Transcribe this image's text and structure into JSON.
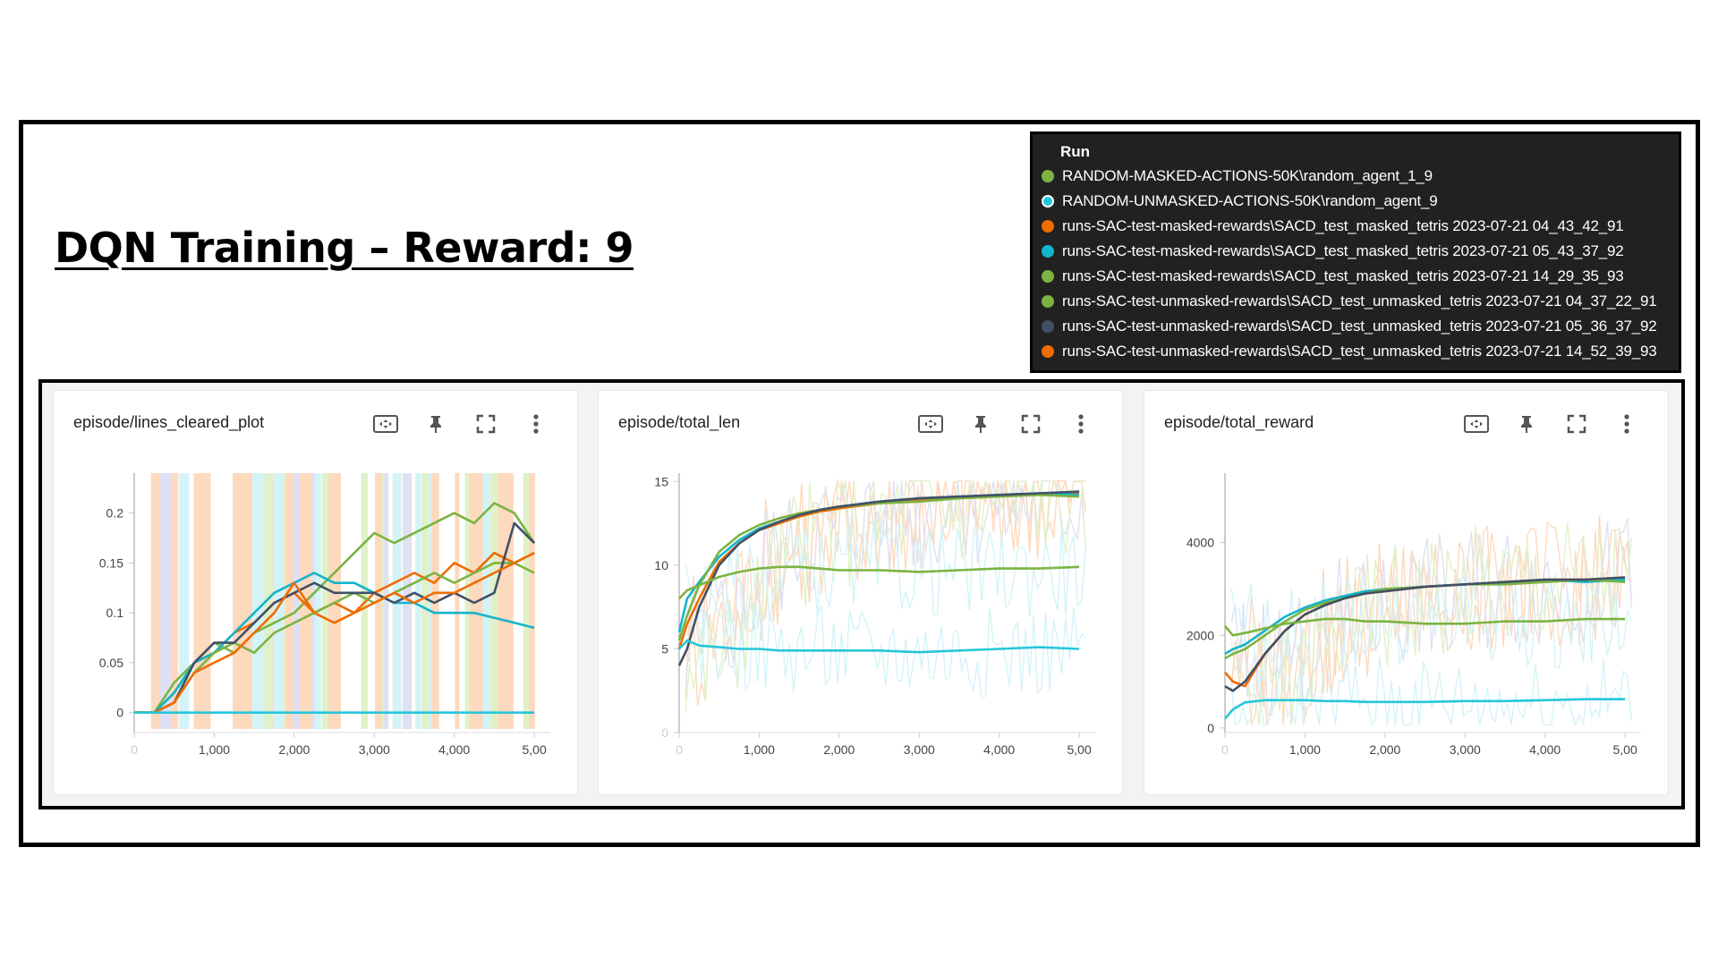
{
  "slide": {
    "title": "DQN Training – Reward: 9"
  },
  "legend": {
    "header": "Run",
    "items": [
      {
        "label": "RANDOM-MASKED-ACTIONS-50K\\random_agent_1_9",
        "color": "#7cb342"
      },
      {
        "label": "RANDOM-UNMASKED-ACTIONS-50K\\random_agent_9",
        "color": "#26c6da"
      },
      {
        "label": "runs-SAC-test-masked-rewards\\SACD_test_masked_tetris 2023-07-21 04_43_42_91",
        "color": "#ef6c00"
      },
      {
        "label": "runs-SAC-test-masked-rewards\\SACD_test_masked_tetris 2023-07-21 05_43_37_92",
        "color": "#12b5cb"
      },
      {
        "label": "runs-SAC-test-masked-rewards\\SACD_test_masked_tetris 2023-07-21 14_29_35_93",
        "color": "#7cb342"
      },
      {
        "label": "runs-SAC-test-unmasked-rewards\\SACD_test_unmasked_tetris 2023-07-21 04_37_22_91",
        "color": "#7cb342"
      },
      {
        "label": "runs-SAC-test-unmasked-rewards\\SACD_test_unmasked_tetris 2023-07-21 05_36_37_92",
        "color": "#425066"
      },
      {
        "label": "runs-SAC-test-unmasked-rewards\\SACD_test_unmasked_tetris 2023-07-21 14_52_39_93",
        "color": "#ef6c00"
      }
    ]
  },
  "toolbar_icons": [
    "fit-domain-icon",
    "pin-icon",
    "fullscreen-icon",
    "more-vert-icon"
  ],
  "chart_data": [
    {
      "type": "line",
      "title": "episode/lines_cleared_plot",
      "xlim": [
        0,
        5200
      ],
      "ylim": [
        -0.02,
        0.24
      ],
      "x_ticks": [
        "0",
        "1,000",
        "2,000",
        "3,000",
        "4,000",
        "5,00"
      ],
      "x_tick_values": [
        0,
        1000,
        2000,
        3000,
        4000,
        5000
      ],
      "y_ticks": [
        "0",
        "0.05",
        "0.1",
        "0.15",
        "0.2"
      ],
      "y_tick_values": [
        0,
        0.05,
        0.1,
        0.15,
        0.2
      ],
      "x": [
        0,
        250,
        500,
        750,
        1000,
        1250,
        1500,
        1750,
        2000,
        2250,
        2500,
        2750,
        3000,
        3250,
        3500,
        3750,
        4000,
        4250,
        4500,
        4750,
        5000
      ],
      "series": [
        {
          "color": "#7cb342",
          "values": [
            0,
            0,
            0.03,
            0.05,
            0.07,
            0.06,
            0.08,
            0.09,
            0.1,
            0.12,
            0.14,
            0.16,
            0.18,
            0.17,
            0.18,
            0.19,
            0.2,
            0.19,
            0.21,
            0.2,
            0.17
          ]
        },
        {
          "color": "#ef6c00",
          "values": [
            0,
            0,
            0.02,
            0.05,
            0.06,
            0.08,
            0.09,
            0.11,
            0.12,
            0.1,
            0.11,
            0.1,
            0.12,
            0.13,
            0.14,
            0.13,
            0.15,
            0.14,
            0.16,
            0.15,
            0.16
          ]
        },
        {
          "color": "#12b5cb",
          "values": [
            0,
            0,
            0.02,
            0.05,
            0.06,
            0.08,
            0.1,
            0.12,
            0.13,
            0.14,
            0.13,
            0.13,
            0.12,
            0.11,
            0.11,
            0.1,
            0.1,
            0.1,
            0.095,
            0.09,
            0.085
          ]
        },
        {
          "color": "#7cb342",
          "values": [
            0,
            0,
            0.01,
            0.04,
            0.06,
            0.07,
            0.06,
            0.08,
            0.09,
            0.1,
            0.11,
            0.12,
            0.11,
            0.12,
            0.13,
            0.14,
            0.13,
            0.14,
            0.15,
            0.15,
            0.14
          ]
        },
        {
          "color": "#425066",
          "values": [
            0,
            0,
            0.01,
            0.05,
            0.07,
            0.07,
            0.09,
            0.11,
            0.12,
            0.13,
            0.12,
            0.12,
            0.12,
            0.11,
            0.12,
            0.11,
            0.12,
            0.11,
            0.12,
            0.19,
            0.17
          ]
        },
        {
          "color": "#ef6c00",
          "values": [
            0,
            0,
            0.01,
            0.04,
            0.05,
            0.06,
            0.08,
            0.1,
            0.13,
            0.1,
            0.09,
            0.1,
            0.11,
            0.12,
            0.11,
            0.12,
            0.12,
            0.13,
            0.14,
            0.15,
            0.16
          ]
        },
        {
          "color": "#26c6da",
          "values": [
            0,
            0,
            0,
            0,
            0,
            0,
            0,
            0,
            0,
            0,
            0,
            0,
            0,
            0,
            0,
            0,
            0,
            0,
            0,
            0,
            0
          ]
        }
      ]
    },
    {
      "type": "line",
      "title": "episode/total_len",
      "xlim": [
        0,
        5200
      ],
      "ylim": [
        0,
        15.5
      ],
      "x_ticks": [
        "0",
        "1,000",
        "2,000",
        "3,000",
        "4,000",
        "5,00"
      ],
      "x_tick_values": [
        0,
        1000,
        2000,
        3000,
        4000,
        5000
      ],
      "y_ticks": [
        "0",
        "5",
        "10",
        "15"
      ],
      "y_tick_values": [
        0,
        5,
        10,
        15
      ],
      "x": [
        0,
        100,
        250,
        500,
        750,
        1000,
        1250,
        1500,
        1750,
        2000,
        2500,
        3000,
        3500,
        4000,
        4500,
        5000
      ],
      "series": [
        {
          "color": "#ef6c00",
          "values": [
            5,
            6.5,
            8,
            10.2,
            11.3,
            12.1,
            12.5,
            12.9,
            13.2,
            13.4,
            13.7,
            13.9,
            14.0,
            14.2,
            14.2,
            14.3
          ]
        },
        {
          "color": "#12b5cb",
          "values": [
            6,
            8,
            9,
            10.5,
            11.5,
            12.2,
            12.6,
            13.0,
            13.3,
            13.5,
            13.8,
            14.0,
            14.1,
            14.2,
            14.3,
            14.2
          ]
        },
        {
          "color": "#7cb342",
          "values": [
            5.5,
            7,
            8.8,
            10.8,
            11.8,
            12.4,
            12.8,
            13.1,
            13.3,
            13.5,
            13.7,
            13.8,
            14.0,
            14.1,
            14.2,
            14.1
          ]
        },
        {
          "color": "#425066",
          "values": [
            4,
            5,
            7.5,
            10,
            11.3,
            12.1,
            12.6,
            13.0,
            13.3,
            13.5,
            13.8,
            14.0,
            14.1,
            14.2,
            14.3,
            14.4
          ]
        },
        {
          "color": "#7cb342",
          "values": [
            8,
            8.5,
            8.8,
            9.3,
            9.6,
            9.8,
            9.9,
            9.9,
            9.8,
            9.7,
            9.7,
            9.6,
            9.7,
            9.8,
            9.8,
            9.9
          ]
        },
        {
          "color": "#26c6da",
          "values": [
            5,
            5.5,
            5.2,
            5.1,
            5.0,
            5.0,
            4.9,
            4.9,
            4.9,
            4.9,
            4.9,
            4.8,
            4.9,
            5.0,
            5.1,
            5.0
          ]
        }
      ]
    },
    {
      "type": "line",
      "title": "episode/total_reward",
      "xlim": [
        0,
        5200
      ],
      "ylim": [
        -100,
        5500
      ],
      "x_ticks": [
        "0",
        "1,000",
        "2,000",
        "3,000",
        "4,000",
        "5,00"
      ],
      "x_tick_values": [
        0,
        1000,
        2000,
        3000,
        4000,
        5000
      ],
      "y_ticks": [
        "0",
        "2000",
        "4000"
      ],
      "y_tick_values": [
        0,
        2000,
        4000
      ],
      "x": [
        0,
        100,
        250,
        500,
        750,
        1000,
        1250,
        1500,
        1750,
        2000,
        2500,
        3000,
        3500,
        4000,
        4500,
        5000
      ],
      "series": [
        {
          "color": "#ef6c00",
          "values": [
            1200,
            1000,
            900,
            1600,
            2100,
            2450,
            2650,
            2800,
            2900,
            2950,
            3050,
            3100,
            3150,
            3200,
            3200,
            3250
          ]
        },
        {
          "color": "#12b5cb",
          "values": [
            1600,
            1700,
            1800,
            2100,
            2400,
            2600,
            2750,
            2850,
            2950,
            3000,
            3050,
            3100,
            3150,
            3200,
            3150,
            3200
          ]
        },
        {
          "color": "#7cb342",
          "values": [
            1500,
            1600,
            1700,
            2000,
            2300,
            2550,
            2700,
            2800,
            2900,
            3000,
            3050,
            3100,
            3100,
            3150,
            3200,
            3150
          ]
        },
        {
          "color": "#425066",
          "values": [
            900,
            800,
            1000,
            1600,
            2100,
            2450,
            2650,
            2800,
            2900,
            2950,
            3050,
            3100,
            3150,
            3200,
            3200,
            3250
          ]
        },
        {
          "color": "#7cb342",
          "values": [
            2200,
            2000,
            2050,
            2150,
            2250,
            2300,
            2350,
            2350,
            2300,
            2300,
            2250,
            2250,
            2300,
            2300,
            2350,
            2350
          ]
        },
        {
          "color": "#26c6da",
          "values": [
            200,
            400,
            550,
            600,
            600,
            600,
            580,
            580,
            560,
            560,
            560,
            580,
            580,
            600,
            620,
            620
          ]
        }
      ]
    }
  ]
}
